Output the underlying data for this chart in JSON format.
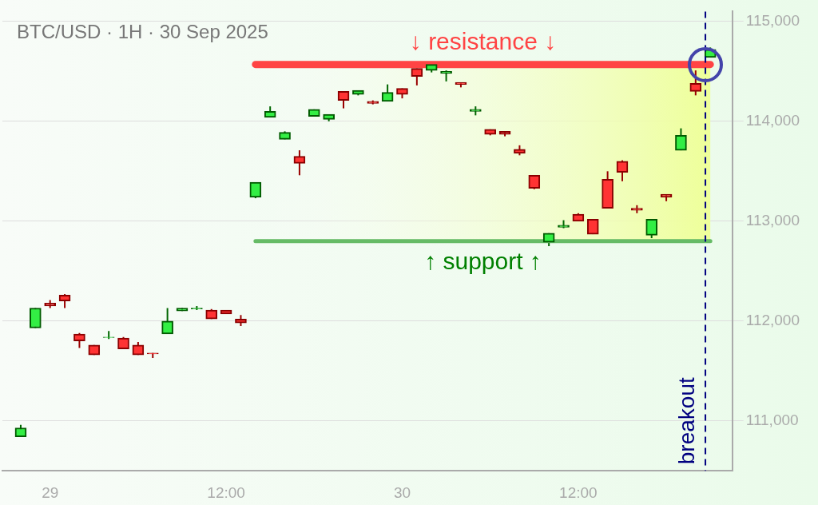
{
  "chart_data": {
    "type": "candlestick",
    "title": "BTC/USD · 1H · 30 Sep 2025",
    "x": [
      "2025-09-28T22:00",
      "2025-09-28T23:00",
      "2025-09-29T00:00",
      "2025-09-29T01:00",
      "2025-09-29T02:00",
      "2025-09-29T03:00",
      "2025-09-29T04:00",
      "2025-09-29T05:00",
      "2025-09-29T06:00",
      "2025-09-29T07:00",
      "2025-09-29T08:00",
      "2025-09-29T09:00",
      "2025-09-29T10:00",
      "2025-09-29T11:00",
      "2025-09-29T12:00",
      "2025-09-29T13:00",
      "2025-09-29T14:00",
      "2025-09-29T15:00",
      "2025-09-29T16:00",
      "2025-09-29T17:00",
      "2025-09-29T18:00",
      "2025-09-29T19:00",
      "2025-09-29T20:00",
      "2025-09-29T21:00",
      "2025-09-29T22:00",
      "2025-09-29T23:00",
      "2025-09-30T00:00",
      "2025-09-30T01:00",
      "2025-09-30T02:00",
      "2025-09-30T03:00",
      "2025-09-30T04:00",
      "2025-09-30T05:00",
      "2025-09-30T06:00",
      "2025-09-30T07:00",
      "2025-09-30T08:00",
      "2025-09-30T09:00",
      "2025-09-30T10:00",
      "2025-09-30T11:00",
      "2025-09-30T12:00",
      "2025-09-30T13:00",
      "2025-09-30T14:00",
      "2025-09-30T15:00",
      "2025-09-30T16:00",
      "2025-09-30T17:00",
      "2025-09-30T18:00",
      "2025-09-30T19:00",
      "2025-09-30T20:00",
      "2025-09-30T21:00"
    ],
    "ohlc": [
      [
        110840,
        110960,
        110840,
        110930
      ],
      [
        111930,
        112130,
        111930,
        112130
      ],
      [
        112180,
        112210,
        112130,
        112150
      ],
      [
        112260,
        112270,
        112130,
        112200
      ],
      [
        111870,
        111880,
        111730,
        111800
      ],
      [
        111760,
        111760,
        111660,
        111660
      ],
      [
        111835,
        111900,
        111820,
        111840
      ],
      [
        111830,
        111840,
        111720,
        111720
      ],
      [
        111760,
        111790,
        111660,
        111660
      ],
      [
        111680,
        111680,
        111630,
        111670
      ],
      [
        111870,
        112130,
        111870,
        112000
      ],
      [
        112100,
        112130,
        112100,
        112130
      ],
      [
        112120,
        112150,
        112110,
        112130
      ],
      [
        112110,
        112120,
        112020,
        112020
      ],
      [
        112110,
        112110,
        112070,
        112070
      ],
      [
        112020,
        112060,
        111950,
        111980
      ],
      [
        113240,
        113390,
        113230,
        113390
      ],
      [
        114040,
        114150,
        114040,
        114100
      ],
      [
        113820,
        113900,
        113820,
        113890
      ],
      [
        113650,
        113710,
        113460,
        113580
      ],
      [
        114050,
        114120,
        114050,
        114120
      ],
      [
        114020,
        114070,
        114000,
        114070
      ],
      [
        114300,
        114300,
        114130,
        114210
      ],
      [
        114270,
        114310,
        114260,
        114310
      ],
      [
        114200,
        114210,
        114170,
        114180
      ],
      [
        114200,
        114370,
        114200,
        114290
      ],
      [
        114330,
        114330,
        114230,
        114270
      ],
      [
        114530,
        114530,
        114360,
        114450
      ],
      [
        114510,
        114590,
        114490,
        114570
      ],
      [
        114480,
        114510,
        114400,
        114500
      ],
      [
        114390,
        114390,
        114340,
        114370
      ],
      [
        114100,
        114150,
        114060,
        114120
      ],
      [
        113920,
        113920,
        113860,
        113870
      ],
      [
        113900,
        113900,
        113850,
        113870
      ],
      [
        113720,
        113760,
        113660,
        113680
      ],
      [
        113460,
        113460,
        113320,
        113330
      ],
      [
        112790,
        112880,
        112750,
        112880
      ],
      [
        112940,
        113010,
        112930,
        112960
      ],
      [
        113070,
        113080,
        113000,
        113000
      ],
      [
        113020,
        113020,
        112870,
        112870
      ],
      [
        113420,
        113500,
        113130,
        113130
      ],
      [
        113600,
        113610,
        113400,
        113490
      ],
      [
        113130,
        113160,
        113080,
        113110
      ],
      [
        112860,
        113020,
        112830,
        113020
      ],
      [
        113270,
        113270,
        113200,
        113240
      ],
      [
        113710,
        113930,
        113710,
        113860
      ],
      [
        114380,
        114510,
        114260,
        114300
      ],
      [
        114640,
        114740,
        114640,
        114720
      ]
    ],
    "series": [
      {
        "type": "line",
        "name": "↓ resistance ↓",
        "color": "#ff4444",
        "x": [
          "2025-09-29T14:00",
          "2025-09-30T21:00"
        ],
        "values": [
          114570,
          114570
        ]
      },
      {
        "type": "line",
        "name": "↑ support ↑",
        "color": "#66bb66",
        "x": [
          "2025-09-29T14:00",
          "2025-09-30T21:00"
        ],
        "values": [
          112800,
          112800
        ]
      }
    ],
    "bands": [
      {
        "axis": "y",
        "from": 112800,
        "to": 114570,
        "color": "#eeff99"
      }
    ],
    "ref_lines": [
      {
        "axis": "x",
        "value": "2025-09-30T20:40",
        "label": "breakout",
        "color": "#000080",
        "line_style": "dashed"
      }
    ],
    "xlim": [
      "2025-09-28T20:45",
      "2025-09-30T22:30"
    ],
    "xticks": [
      {
        "value": "2025-09-29T00:00",
        "label": "29"
      },
      {
        "value": "2025-09-29T12:00",
        "label": "12:00"
      },
      {
        "value": "2025-09-30T00:00",
        "label": "30"
      },
      {
        "value": "2025-09-30T12:00",
        "label": "12:00"
      }
    ],
    "ylim": [
      110500,
      115100
    ],
    "yticks": [
      {
        "value": 111000,
        "label": "111,000"
      },
      {
        "value": 112000,
        "label": "112,000"
      },
      {
        "value": 113000,
        "label": "113,000"
      },
      {
        "value": 114000,
        "label": "114,000"
      },
      {
        "value": 115000,
        "label": "115,000"
      }
    ],
    "grid": "y",
    "legend": false
  }
}
